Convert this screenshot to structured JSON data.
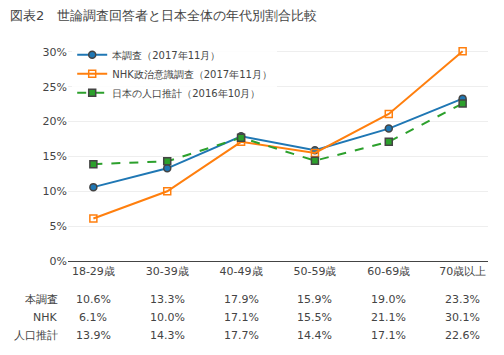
{
  "chart_data": {
    "type": "line",
    "title": "図表2　世論調査回答者と日本全体の年代別割合比較",
    "categories": [
      "18-29歳",
      "30-39歳",
      "40-49歳",
      "50-59歳",
      "60-69歳",
      "70歳以上"
    ],
    "series": [
      {
        "name": "本調査（2017年11月）",
        "values": [
          10.6,
          13.3,
          17.9,
          15.9,
          19.0,
          23.3
        ],
        "value_labels": [
          "10.6%",
          "13.3%",
          "17.9%",
          "15.9%",
          "19.0%",
          "23.3%"
        ],
        "table_label": "本調査",
        "marker": "circle",
        "line_style": "solid"
      },
      {
        "name": "NHK政治意識調査（2017年11月）",
        "values": [
          6.1,
          10.0,
          17.1,
          15.5,
          21.1,
          30.1
        ],
        "value_labels": [
          "6.1%",
          "10.0%",
          "17.1%",
          "15.5%",
          "21.1%",
          "30.1%"
        ],
        "table_label": "NHK",
        "marker": "square-open",
        "line_style": "solid"
      },
      {
        "name": "日本の人口推計（2016年10月）",
        "values": [
          13.9,
          14.3,
          17.7,
          14.4,
          17.1,
          22.6
        ],
        "value_labels": [
          "13.9%",
          "14.3%",
          "17.7%",
          "14.4%",
          "17.1%",
          "22.6%"
        ],
        "table_label": "人口推計",
        "marker": "square",
        "line_style": "dash"
      }
    ],
    "ylim": [
      0,
      32
    ],
    "yticks": [
      {
        "value": 0,
        "label": "0%"
      },
      {
        "value": 5,
        "label": "5%"
      },
      {
        "value": 10,
        "label": "10%"
      },
      {
        "value": 15,
        "label": "15%"
      },
      {
        "value": 20,
        "label": "20%"
      },
      {
        "value": 25,
        "label": "25%"
      },
      {
        "value": 30,
        "label": "30%"
      }
    ],
    "grid": true,
    "legend": "upper left"
  }
}
